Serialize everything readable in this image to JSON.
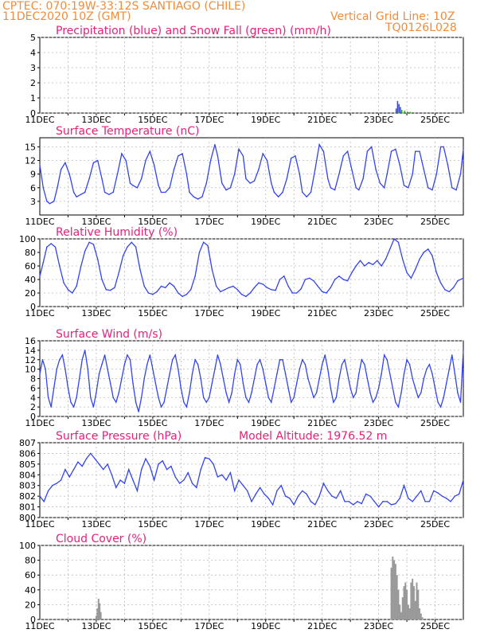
{
  "header": {
    "station": "CPTEC:   070:19W-33:12S  SANTIAGO (CHILE)",
    "run": "11DEC2020 10Z (GMT)",
    "grid_note": "Vertical Grid Line: 10Z",
    "code": "TQ0126L028"
  },
  "colors": {
    "line": "#3344ee",
    "title": "#e8207a",
    "header": "#f08c3c",
    "bar": "#999999",
    "snow": "#22aa22"
  },
  "chart_data": [
    {
      "id": "precip",
      "type": "bar",
      "title": "Precipitation (blue) and Snow Fall (green) (mm/h)",
      "ylim": [
        0,
        5
      ],
      "yticks": [
        0,
        1,
        2,
        3,
        4,
        5
      ],
      "xticks": [
        "11DEC",
        "13DEC",
        "15DEC",
        "17DEC",
        "19DEC",
        "21DEC",
        "23DEC",
        "25DEC"
      ],
      "x_unit": "day offset from 11DEC 10Z",
      "series": [
        {
          "name": "Precipitation",
          "color": "#3344ee",
          "x": [
            12.6,
            12.65,
            12.7,
            12.75,
            12.8
          ],
          "values": [
            0.3,
            0.8,
            0.6,
            0.4,
            0.2
          ]
        },
        {
          "name": "Snow Fall",
          "color": "#22aa22",
          "x": [
            12.7,
            12.8,
            12.9,
            13.0,
            13.1,
            13.2
          ],
          "values": [
            0.1,
            0.2,
            0.15,
            0.1,
            0.08,
            0.05
          ]
        }
      ]
    },
    {
      "id": "temp",
      "type": "line",
      "title": "Surface Temperature (nC)",
      "ylim": [
        0,
        17
      ],
      "yticks": [
        3,
        6,
        9,
        12,
        15
      ],
      "xticks": [
        "11DEC",
        "13DEC",
        "15DEC",
        "17DEC",
        "19DEC",
        "21DEC",
        "23DEC",
        "25DEC"
      ],
      "x": [
        0,
        0.12,
        0.25,
        0.35,
        0.5,
        0.62,
        0.75,
        0.9,
        1.05,
        1.2,
        1.3,
        1.45,
        1.6,
        1.75,
        1.9,
        2.05,
        2.2,
        2.3,
        2.45,
        2.6,
        2.75,
        2.9,
        3.05,
        3.2,
        3.3,
        3.45,
        3.6,
        3.75,
        3.9,
        4.05,
        4.2,
        4.3,
        4.45,
        4.6,
        4.75,
        4.9,
        5.05,
        5.2,
        5.3,
        5.45,
        5.6,
        5.75,
        5.9,
        6.05,
        6.2,
        6.3,
        6.45,
        6.6,
        6.75,
        6.9,
        7.05,
        7.2,
        7.3,
        7.45,
        7.6,
        7.75,
        7.9,
        8.05,
        8.2,
        8.3,
        8.45,
        8.6,
        8.75,
        8.9,
        9.05,
        9.2,
        9.3,
        9.45,
        9.6,
        9.75,
        9.9,
        10.05,
        10.2,
        10.3,
        10.45,
        10.6,
        10.75,
        10.9,
        11.05,
        11.2,
        11.3,
        11.45,
        11.6,
        11.75,
        11.9,
        12.05,
        12.2,
        12.3,
        12.45,
        12.6,
        12.75,
        12.9,
        13.05,
        13.2,
        13.3,
        13.45,
        13.6,
        13.75,
        13.9,
        14.05,
        14.2,
        14.3,
        14.45,
        14.6,
        14.75,
        14.9,
        15.0
      ],
      "values": [
        11,
        6,
        3,
        2.5,
        3,
        6,
        10,
        11.5,
        9,
        5,
        4,
        4.5,
        5,
        8,
        11.5,
        12,
        8,
        5,
        4.5,
        5,
        9,
        13.5,
        12,
        7,
        6.5,
        6,
        8,
        12,
        14,
        11,
        6.5,
        5,
        5,
        6,
        10,
        13,
        13.5,
        9,
        5,
        4,
        3.5,
        4,
        7,
        12,
        15.5,
        13,
        7,
        5.5,
        6,
        9,
        14.5,
        13,
        8,
        7,
        7.5,
        10,
        13.5,
        12,
        7,
        5,
        4,
        5,
        8,
        12.5,
        13,
        9,
        5,
        4,
        5,
        10,
        15.5,
        14,
        8,
        6,
        5.5,
        9,
        13,
        14,
        10,
        6,
        5.5,
        8,
        14,
        15,
        10,
        7,
        6,
        9,
        14,
        14.5,
        11,
        6.5,
        6,
        9,
        14,
        14,
        10,
        6,
        5.5,
        9,
        15,
        15,
        11,
        6,
        5.5,
        9,
        14.5
      ]
    },
    {
      "id": "rh",
      "type": "line",
      "title": "Relative Humidity (%)",
      "ylim": [
        0,
        100
      ],
      "yticks": [
        0,
        20,
        40,
        60,
        80,
        100
      ],
      "xticks": [
        "11DEC",
        "13DEC",
        "15DEC",
        "17DEC",
        "19DEC",
        "21DEC",
        "23DEC",
        "25DEC"
      ],
      "x": [
        0,
        0.12,
        0.25,
        0.4,
        0.55,
        0.7,
        0.85,
        1.0,
        1.15,
        1.3,
        1.45,
        1.6,
        1.75,
        1.9,
        2.05,
        2.2,
        2.35,
        2.5,
        2.65,
        2.8,
        2.95,
        3.1,
        3.25,
        3.4,
        3.55,
        3.7,
        3.85,
        4.0,
        4.15,
        4.3,
        4.45,
        4.6,
        4.75,
        4.9,
        5.05,
        5.2,
        5.35,
        5.5,
        5.65,
        5.8,
        5.95,
        6.1,
        6.25,
        6.4,
        6.55,
        6.7,
        6.85,
        7.0,
        7.15,
        7.3,
        7.45,
        7.6,
        7.75,
        7.9,
        8.05,
        8.2,
        8.35,
        8.5,
        8.65,
        8.8,
        8.95,
        9.1,
        9.25,
        9.4,
        9.55,
        9.7,
        9.85,
        10.0,
        10.15,
        10.3,
        10.45,
        10.6,
        10.75,
        10.9,
        11.05,
        11.2,
        11.35,
        11.5,
        11.65,
        11.8,
        11.95,
        12.1,
        12.25,
        12.4,
        12.55,
        12.7,
        12.85,
        13.0,
        13.15,
        13.3,
        13.45,
        13.6,
        13.75,
        13.9,
        14.05,
        14.2,
        14.35,
        14.5,
        14.65,
        14.8,
        15.0
      ],
      "values": [
        45,
        65,
        88,
        93,
        88,
        60,
        35,
        25,
        20,
        30,
        58,
        82,
        95,
        92,
        70,
        40,
        25,
        24,
        28,
        50,
        75,
        88,
        95,
        88,
        55,
        30,
        20,
        18,
        22,
        30,
        28,
        35,
        30,
        20,
        15,
        18,
        25,
        45,
        80,
        95,
        90,
        55,
        30,
        22,
        25,
        28,
        30,
        25,
        18,
        15,
        20,
        28,
        35,
        33,
        28,
        25,
        24,
        40,
        45,
        30,
        20,
        20,
        26,
        40,
        42,
        38,
        30,
        22,
        20,
        28,
        40,
        45,
        40,
        38,
        50,
        60,
        68,
        60,
        65,
        62,
        68,
        60,
        70,
        85,
        100,
        95,
        70,
        50,
        42,
        55,
        70,
        80,
        85,
        75,
        50,
        35,
        25,
        22,
        28,
        38,
        42
      ]
    },
    {
      "id": "wind",
      "type": "line",
      "title": "Surface Wind (m/s)",
      "ylim": [
        0,
        16
      ],
      "yticks": [
        0,
        2,
        4,
        6,
        8,
        10,
        12,
        14,
        16
      ],
      "xticks": [
        "11DEC",
        "13DEC",
        "15DEC",
        "17DEC",
        "19DEC",
        "21DEC",
        "23DEC",
        "25DEC"
      ],
      "x": [
        0,
        0.1,
        0.2,
        0.3,
        0.4,
        0.5,
        0.6,
        0.7,
        0.8,
        0.9,
        1.0,
        1.1,
        1.2,
        1.3,
        1.4,
        1.5,
        1.6,
        1.7,
        1.8,
        1.9,
        2.0,
        2.1,
        2.2,
        2.3,
        2.4,
        2.5,
        2.6,
        2.7,
        2.8,
        2.9,
        3.0,
        3.1,
        3.2,
        3.3,
        3.4,
        3.5,
        3.6,
        3.7,
        3.8,
        3.9,
        4.0,
        4.1,
        4.2,
        4.3,
        4.4,
        4.5,
        4.6,
        4.7,
        4.8,
        4.9,
        5.0,
        5.1,
        5.2,
        5.3,
        5.4,
        5.5,
        5.6,
        5.7,
        5.8,
        5.9,
        6.0,
        6.1,
        6.2,
        6.3,
        6.4,
        6.5,
        6.6,
        6.7,
        6.8,
        6.9,
        7.0,
        7.1,
        7.2,
        7.3,
        7.4,
        7.5,
        7.6,
        7.7,
        7.8,
        7.9,
        8.0,
        8.1,
        8.2,
        8.3,
        8.4,
        8.5,
        8.6,
        8.7,
        8.8,
        8.9,
        9.0,
        9.1,
        9.2,
        9.3,
        9.4,
        9.5,
        9.6,
        9.7,
        9.8,
        9.9,
        10.0,
        10.1,
        10.2,
        10.3,
        10.4,
        10.5,
        10.6,
        10.7,
        10.8,
        10.9,
        11.0,
        11.1,
        11.2,
        11.3,
        11.4,
        11.5,
        11.6,
        11.7,
        11.8,
        11.9,
        12.0,
        12.1,
        12.2,
        12.3,
        12.4,
        12.5,
        12.6,
        12.7,
        12.8,
        12.9,
        13.0,
        13.1,
        13.2,
        13.3,
        13.4,
        13.5,
        13.6,
        13.7,
        13.8,
        13.9,
        14.0,
        14.1,
        14.2,
        14.3,
        14.4,
        14.5,
        14.6,
        14.7,
        14.8,
        14.9,
        15.0
      ],
      "values": [
        9,
        12,
        10,
        4,
        2,
        6,
        10,
        12,
        13,
        10,
        6,
        3,
        2,
        4,
        8,
        12,
        14,
        10,
        4,
        2,
        5,
        9,
        11,
        13,
        10,
        7,
        4,
        3,
        5,
        8,
        11,
        13,
        12,
        7,
        3,
        1,
        4,
        8,
        11,
        13,
        10,
        7,
        4,
        2,
        3,
        6,
        9,
        12,
        13,
        10,
        6,
        3,
        2,
        5,
        9,
        12,
        11,
        8,
        4,
        3,
        4,
        7,
        10,
        13,
        11,
        8,
        5,
        3,
        5,
        9,
        12,
        11,
        7,
        4,
        3,
        5,
        8,
        11,
        12,
        10,
        7,
        4,
        3,
        6,
        9,
        12,
        12,
        9,
        6,
        3,
        4,
        7,
        10,
        12,
        11,
        8,
        6,
        4,
        5,
        8,
        11,
        13,
        10,
        6,
        3,
        4,
        8,
        11,
        12,
        9,
        6,
        4,
        5,
        9,
        12,
        11,
        8,
        5,
        3,
        4,
        6,
        9,
        13,
        12,
        9,
        6,
        3,
        2,
        5,
        9,
        12,
        11,
        8,
        6,
        4,
        5,
        8,
        10,
        11,
        9,
        6,
        3,
        2,
        4,
        7,
        10,
        13,
        9,
        5,
        3,
        14
      ]
    },
    {
      "id": "pres",
      "type": "line",
      "title": "Surface Pressure (hPa)",
      "note": "Model Altitude: 1976.52 m",
      "ylim": [
        800,
        807
      ],
      "yticks": [
        800,
        801,
        802,
        803,
        804,
        805,
        806,
        807
      ],
      "xticks": [
        "11DEC",
        "13DEC",
        "15DEC",
        "17DEC",
        "19DEC",
        "21DEC",
        "23DEC",
        "25DEC"
      ],
      "x": [
        0,
        0.15,
        0.3,
        0.45,
        0.6,
        0.75,
        0.9,
        1.05,
        1.2,
        1.35,
        1.5,
        1.65,
        1.8,
        1.95,
        2.1,
        2.25,
        2.4,
        2.55,
        2.7,
        2.85,
        3.0,
        3.15,
        3.3,
        3.45,
        3.6,
        3.75,
        3.9,
        4.05,
        4.2,
        4.35,
        4.5,
        4.65,
        4.8,
        4.95,
        5.1,
        5.25,
        5.4,
        5.55,
        5.7,
        5.85,
        6.0,
        6.15,
        6.3,
        6.45,
        6.6,
        6.75,
        6.9,
        7.05,
        7.2,
        7.35,
        7.5,
        7.65,
        7.8,
        7.95,
        8.1,
        8.25,
        8.4,
        8.55,
        8.7,
        8.85,
        9.0,
        9.15,
        9.3,
        9.45,
        9.6,
        9.75,
        9.9,
        10.05,
        10.2,
        10.35,
        10.5,
        10.65,
        10.8,
        10.95,
        11.1,
        11.25,
        11.4,
        11.55,
        11.7,
        11.85,
        12.0,
        12.15,
        12.3,
        12.45,
        12.6,
        12.75,
        12.9,
        13.05,
        13.2,
        13.35,
        13.5,
        13.65,
        13.8,
        13.95,
        14.1,
        14.25,
        14.4,
        14.55,
        14.7,
        14.85,
        15.0
      ],
      "values": [
        802,
        801.5,
        802.5,
        803,
        803.2,
        803.5,
        804.5,
        803.8,
        804.5,
        805.2,
        804.8,
        805.5,
        806,
        805.5,
        805,
        804.5,
        805,
        804,
        802.8,
        803.5,
        803.2,
        804.5,
        803.5,
        802.5,
        804.5,
        805.5,
        804.8,
        803.5,
        805,
        805.3,
        804.5,
        804.8,
        803.8,
        803.2,
        803.5,
        804.2,
        803.2,
        802.8,
        804.5,
        805.6,
        805.5,
        805,
        803.8,
        804,
        803.5,
        804.2,
        802.5,
        803.5,
        803,
        802.5,
        801.5,
        802.2,
        802.8,
        802.2,
        801.8,
        801.2,
        802.5,
        803,
        802,
        801.8,
        801.2,
        802,
        802.5,
        802.2,
        801.5,
        801.2,
        802,
        803.2,
        802.5,
        802,
        801.8,
        802.5,
        801.5,
        801.5,
        801.2,
        801.5,
        801.3,
        802.2,
        802,
        801.5,
        801,
        801.5,
        801.5,
        801.2,
        801.3,
        801.8,
        803,
        801.8,
        801.5,
        802,
        802.5,
        801.5,
        801.5,
        802.5,
        802.3,
        802,
        801.8,
        801.5,
        802,
        802.2,
        803.5
      ]
    },
    {
      "id": "cloud",
      "type": "bar",
      "title": "Cloud Cover (%)",
      "ylim": [
        0,
        100
      ],
      "yticks": [
        0,
        20,
        40,
        60,
        80,
        100
      ],
      "xticks": [
        "11DEC",
        "13DEC",
        "15DEC",
        "17DEC",
        "19DEC",
        "21DEC",
        "23DEC",
        "25DEC"
      ],
      "x": [
        2.0,
        2.04,
        2.08,
        2.12,
        2.16,
        12.45,
        12.5,
        12.55,
        12.6,
        12.65,
        12.7,
        12.75,
        12.8,
        12.85,
        12.9,
        12.95,
        13.0,
        13.05,
        13.1,
        13.15,
        13.2,
        13.25,
        13.3,
        13.35,
        13.4,
        13.45,
        13.5,
        13.55
      ],
      "values": [
        5,
        15,
        28,
        22,
        10,
        70,
        85,
        80,
        75,
        60,
        40,
        20,
        10,
        30,
        45,
        50,
        40,
        20,
        15,
        50,
        55,
        45,
        25,
        50,
        40,
        15,
        8,
        3
      ]
    }
  ]
}
